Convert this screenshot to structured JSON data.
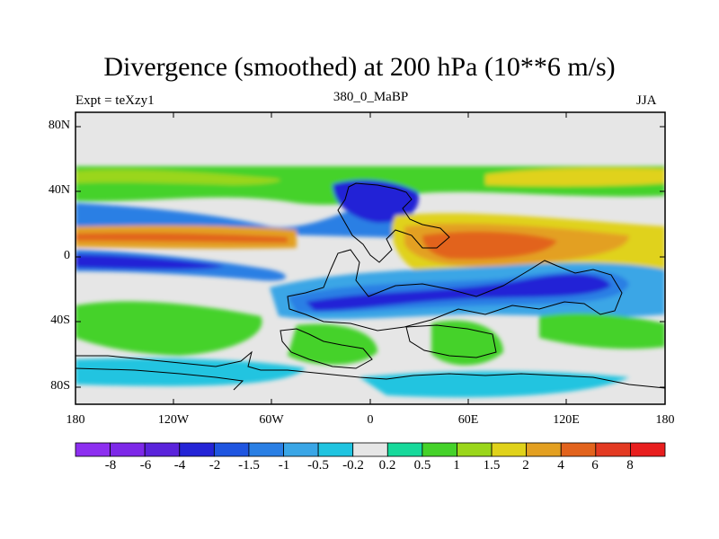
{
  "figure": {
    "title": "Divergence (smoothed) at 200 hPa (10**6 m/s)",
    "left_subtitle": "Expt = teXzy1",
    "center_subtitle": "380_0_MaBP",
    "right_subtitle": "JJA"
  },
  "axes": {
    "lat_labels": [
      "80N",
      "40N",
      "0",
      "40S",
      "80S"
    ],
    "lon_labels": [
      "180",
      "120W",
      "60W",
      "0",
      "60E",
      "120E",
      "180"
    ]
  },
  "colorbar": {
    "labels": [
      "-8",
      "-6",
      "-4",
      "-2",
      "-1.5",
      "-1",
      "-0.5",
      "-0.2",
      "0.2",
      "0.5",
      "1",
      "1.5",
      "2",
      "4",
      "6",
      "8"
    ],
    "colors": [
      "#8d2ff0",
      "#7d28e8",
      "#5a23db",
      "#2424d6",
      "#1f55e0",
      "#2a7fe4",
      "#3aa6e6",
      "#20c4e0",
      "#e6e6e6",
      "#17d99b",
      "#45d22a",
      "#9ad61a",
      "#e0d21a",
      "#e3a021",
      "#e2631d",
      "#e33a22",
      "#e81e1e"
    ]
  },
  "chart_data": {
    "type": "heatmap",
    "title": "Divergence (smoothed) at 200 hPa (10**6 m/s)",
    "subtitle_left": "Expt = teXzy1",
    "subtitle_center": "380_0_MaBP",
    "subtitle_right": "JJA",
    "x_range_deg": [
      -180,
      180
    ],
    "y_range_deg": [
      -90,
      90
    ],
    "levels": [
      -8,
      -6,
      -4,
      -2,
      -1.5,
      -1,
      -0.5,
      -0.2,
      0.2,
      0.5,
      1,
      1.5,
      2,
      4,
      6,
      8
    ],
    "zonal_bands": [
      {
        "lat_range": [
          35,
          55
        ],
        "min_level": -0.2,
        "max_level": 1,
        "description": "weak positive (green) band"
      },
      {
        "lat_range": [
          5,
          20
        ],
        "min_level": 1.5,
        "max_level": 6,
        "description": "strong divergence over low latitudes, peaking near 30E-90E"
      },
      {
        "lat_range": [
          -20,
          0
        ],
        "min_level": -4,
        "max_level": -1,
        "description": "convergence band from 180 to 40W"
      },
      {
        "lat_range": [
          -45,
          -20
        ],
        "min_level": -4,
        "max_level": -1,
        "description": "strong convergence over the southern continent 30W-150E"
      },
      {
        "lat_range": [
          -80,
          -50
        ],
        "min_level": -1,
        "max_level": 1,
        "description": "alternating weak bands"
      }
    ]
  }
}
